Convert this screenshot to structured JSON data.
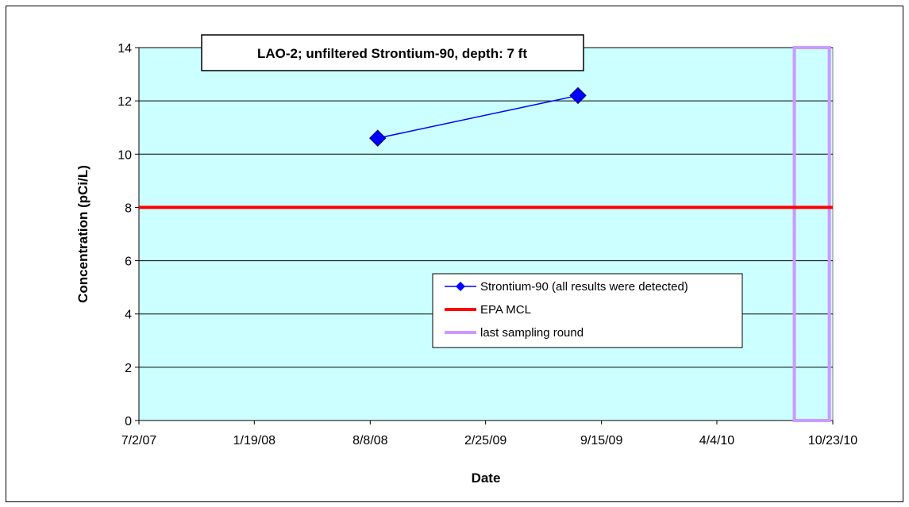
{
  "chart_data": {
    "type": "line",
    "title": "LAO-2; unfiltered Strontium-90, depth: 7 ft",
    "xlabel": "Date",
    "ylabel": "Concentration (pCi/L)",
    "x_ticks": [
      "7/2/07",
      "1/19/08",
      "8/8/08",
      "2/25/09",
      "9/15/09",
      "4/4/10",
      "10/23/10"
    ],
    "y_ticks": [
      "0",
      "2",
      "4",
      "6",
      "8",
      "10",
      "12",
      "14"
    ],
    "xlim": [
      "7/2/07",
      "10/23/10"
    ],
    "ylim": [
      0,
      14
    ],
    "grid": "horizontal",
    "series": [
      {
        "name": "Strontium-90 (all results were detected)",
        "color": "#0000ff",
        "marker": "diamond",
        "points": [
          {
            "x": "8/21/08",
            "y": 10.6
          },
          {
            "x": "8/5/09",
            "y": 12.2
          }
        ]
      },
      {
        "name": "EPA MCL",
        "color": "#ff0000",
        "y": 8
      },
      {
        "name": "last sampling round",
        "color": "#cc99ff",
        "x_range": [
          "8/17/10",
          "10/17/10"
        ]
      }
    ],
    "legend_position": "center-right",
    "plot_background": "#ccffff"
  }
}
